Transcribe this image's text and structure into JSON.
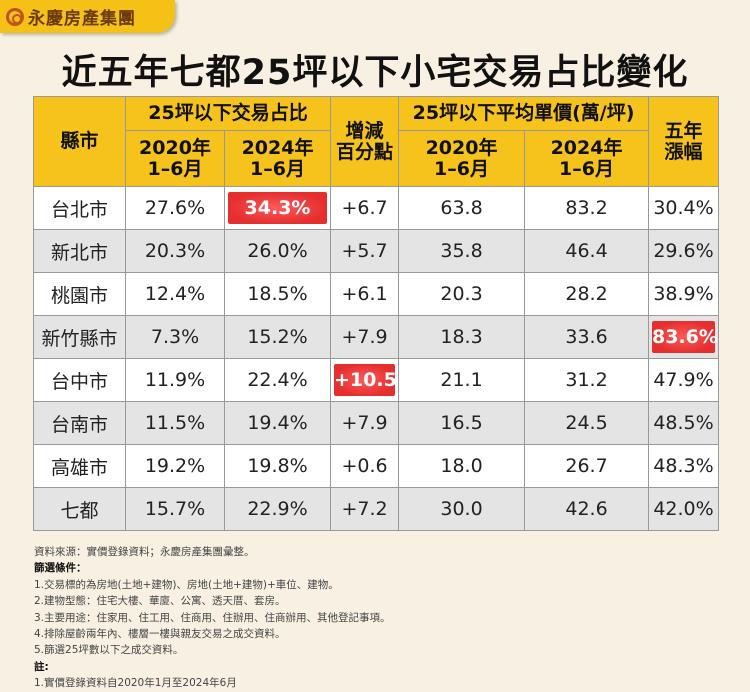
{
  "logo": {
    "text": "永慶房產集團"
  },
  "title": "近五年七都25坪以下小宅交易占比變化",
  "header": {
    "city": "縣市",
    "share_group": "25坪以下交易占比",
    "change": "增減百分點",
    "price_group": "25坪以下平均單價(萬/坪)",
    "growth": "五年漲幅",
    "p2020": "2020年1-6月",
    "p2024": "2024年1-6月"
  },
  "rows": [
    {
      "city": "台北市",
      "s2020": "27.6%",
      "s2024": "34.3%",
      "change": "+6.7",
      "p2020": "63.8",
      "p2024": "83.2",
      "growth": "30.4%"
    },
    {
      "city": "新北市",
      "s2020": "20.3%",
      "s2024": "26.0%",
      "change": "+5.7",
      "p2020": "35.8",
      "p2024": "46.4",
      "growth": "29.6%"
    },
    {
      "city": "桃園市",
      "s2020": "12.4%",
      "s2024": "18.5%",
      "change": "+6.1",
      "p2020": "20.3",
      "p2024": "28.2",
      "growth": "38.9%"
    },
    {
      "city": "新竹縣市",
      "s2020": "7.3%",
      "s2024": "15.2%",
      "change": "+7.9",
      "p2020": "18.3",
      "p2024": "33.6",
      "growth": "83.6%"
    },
    {
      "city": "台中市",
      "s2020": "11.9%",
      "s2024": "22.4%",
      "change": "+10.5",
      "p2020": "21.1",
      "p2024": "31.2",
      "growth": "47.9%"
    },
    {
      "city": "台南市",
      "s2020": "11.5%",
      "s2024": "19.4%",
      "change": "+7.9",
      "p2020": "16.5",
      "p2024": "24.5",
      "growth": "48.5%"
    },
    {
      "city": "高雄市",
      "s2020": "19.2%",
      "s2024": "19.8%",
      "change": "+0.6",
      "p2020": "18.0",
      "p2024": "26.7",
      "growth": "48.3%"
    },
    {
      "city": "七都",
      "s2020": "15.7%",
      "s2024": "22.9%",
      "change": "+7.2",
      "p2020": "30.0",
      "p2024": "42.6",
      "growth": "42.0%"
    }
  ],
  "highlight_color": "#e52f2f",
  "notes": {
    "source": "資料來源：實價登錄資料；永慶房產集團彙整。",
    "criteria_title": "篩選條件：",
    "criteria": [
      "1.交易標的為房地(土地+建物)、房地(土地+建物)+車位、建物。",
      "2.建物型態：住宅大樓、華廈、公寓、透天厝、套房。",
      "3.主要用途：住家用、住工用、住商用、住辦用、住商辦用、其他登記事項。",
      "4.排除屋齡兩年內、樓層一樓與親友交易之成交資料。",
      "5.篩選25坪數以下之成交資料。"
    ],
    "note_title": "註:",
    "note": [
      "1.實價登錄資料自2020年1月至2024年6月"
    ]
  }
}
